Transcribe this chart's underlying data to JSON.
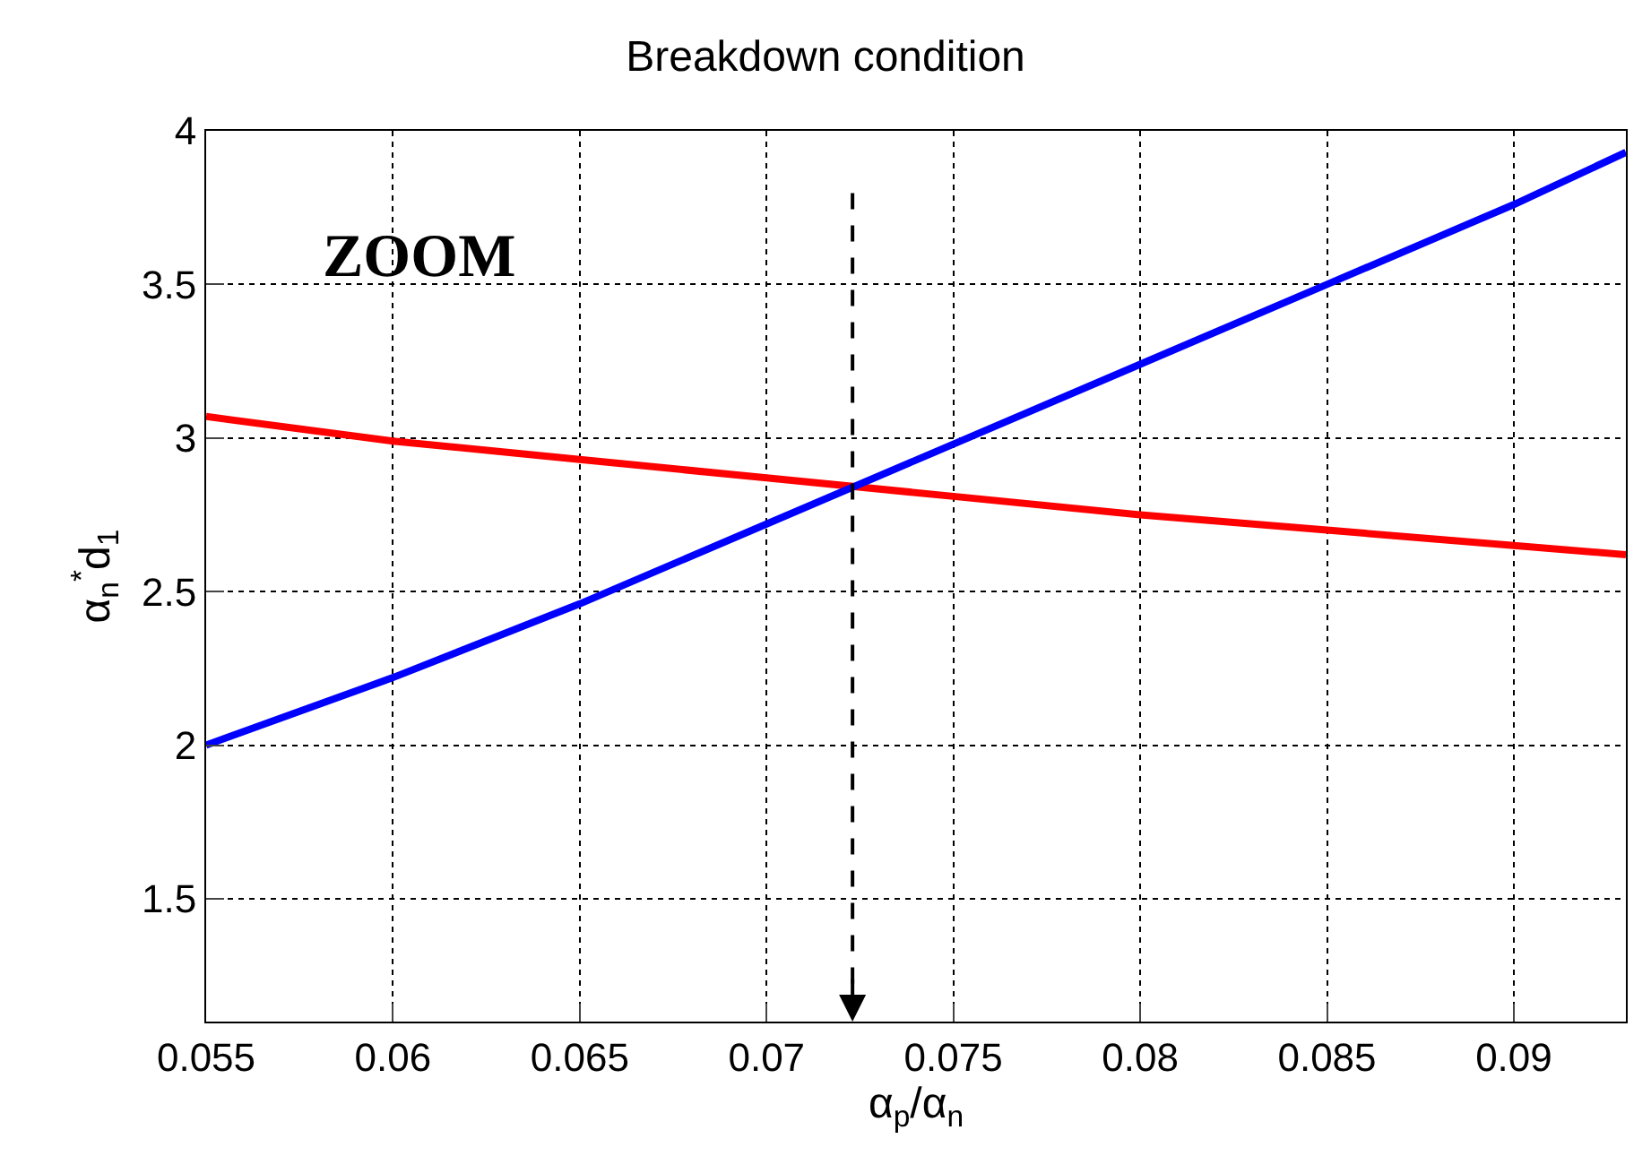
{
  "chart_data": {
    "type": "line",
    "title": "Breakdown condition",
    "xlabel": "α$_{p}$/α$_{n}$",
    "ylabel": "α$_{n}$$^{*}$d$_{1}$",
    "x": [
      0.055,
      0.06,
      0.065,
      0.07,
      0.075,
      0.08,
      0.085,
      0.09,
      0.093
    ],
    "series": [
      {
        "color": "#ff0000",
        "values": [
          3.07,
          2.99,
          2.93,
          2.87,
          2.81,
          2.75,
          2.7,
          2.65,
          2.62
        ]
      },
      {
        "color": "#0000ff",
        "values": [
          2.0,
          2.22,
          2.46,
          2.72,
          2.98,
          3.24,
          3.5,
          3.76,
          3.93
        ]
      }
    ],
    "xlim": [
      0.055,
      0.093
    ],
    "xticks": [
      0.055,
      0.06,
      0.065,
      0.07,
      0.075,
      0.08,
      0.085,
      0.09
    ],
    "ylim": [
      1.1,
      4
    ],
    "yticks": [
      1.5,
      2,
      2.5,
      3,
      3.5,
      4
    ],
    "grid": true,
    "marker": "none",
    "line_style": "solid",
    "ref_lines": [
      {
        "axis": "x",
        "value": 0.0723,
        "label": null,
        "color": "#000000",
        "line_style": "dashed"
      }
    ],
    "annotations": [
      "ZOOM"
    ]
  }
}
